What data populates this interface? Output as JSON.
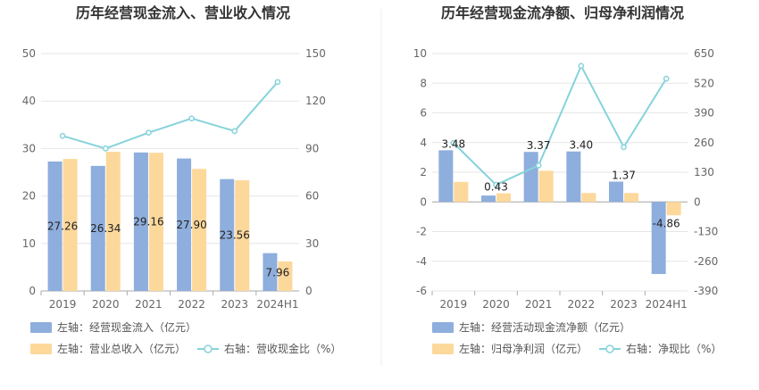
{
  "chart_data": [
    {
      "type": "bar",
      "title": "历年经营现金流入、营业收入情况",
      "categories": [
        "2019",
        "2020",
        "2021",
        "2022",
        "2023",
        "2024H1"
      ],
      "y_left_lim": [
        0,
        50
      ],
      "y_left_ticks": [
        "0",
        "10",
        "20",
        "30",
        "40",
        "50"
      ],
      "y_right_lim": [
        0,
        150
      ],
      "y_right_ticks": [
        "0",
        "30",
        "60",
        "90",
        "120",
        "150"
      ],
      "series": [
        {
          "name": "左轴：经营现金流入（亿元）",
          "type": "bar",
          "axis": "left",
          "color": "#8eaedd",
          "values": [
            27.26,
            26.34,
            29.16,
            27.9,
            23.56,
            7.96
          ],
          "labels": [
            "27.26",
            "26.34",
            "29.16",
            "27.90",
            "23.56",
            "7.96"
          ]
        },
        {
          "name": "左轴：营业总收入（亿元）",
          "type": "bar",
          "axis": "left",
          "color": "#fdd89b",
          "values": [
            27.8,
            29.3,
            29.1,
            25.7,
            23.3,
            6.2
          ]
        },
        {
          "name": "右轴：营收现金比（%）",
          "type": "line",
          "axis": "right",
          "color": "#86d3db",
          "values": [
            98,
            90,
            100,
            109,
            101,
            132
          ]
        }
      ],
      "grid": true,
      "legend_position": "bottom"
    },
    {
      "type": "bar",
      "title": "历年经营现金流净额、归母净利润情况",
      "categories": [
        "2019",
        "2020",
        "2021",
        "2022",
        "2023",
        "2024H1"
      ],
      "y_left_lim": [
        -6,
        10
      ],
      "y_left_ticks": [
        "-6",
        "-4",
        "-2",
        "0",
        "2",
        "4",
        "6",
        "8",
        "10"
      ],
      "y_right_lim": [
        -390,
        650
      ],
      "y_right_ticks": [
        "-390",
        "-260",
        "-130",
        "0",
        "130",
        "260",
        "390",
        "520",
        "650"
      ],
      "series": [
        {
          "name": "左轴：经营活动现金流净额（亿元）",
          "type": "bar",
          "axis": "left",
          "color": "#8eaedd",
          "values": [
            3.48,
            0.43,
            3.37,
            3.4,
            1.37,
            -4.86
          ],
          "labels": [
            "3.48",
            "0.43",
            "3.37",
            "3.40",
            "1.37",
            "-4.86"
          ]
        },
        {
          "name": "左轴：归母净利润（亿元）",
          "type": "bar",
          "axis": "left",
          "color": "#fdd89b",
          "values": [
            1.35,
            0.58,
            2.1,
            0.6,
            0.6,
            -0.9
          ]
        },
        {
          "name": "右轴：净现比（%）",
          "type": "line",
          "axis": "right",
          "color": "#86d3db",
          "values": [
            258,
            75,
            160,
            596,
            240,
            540
          ]
        }
      ],
      "grid": true,
      "legend_position": "bottom"
    }
  ]
}
